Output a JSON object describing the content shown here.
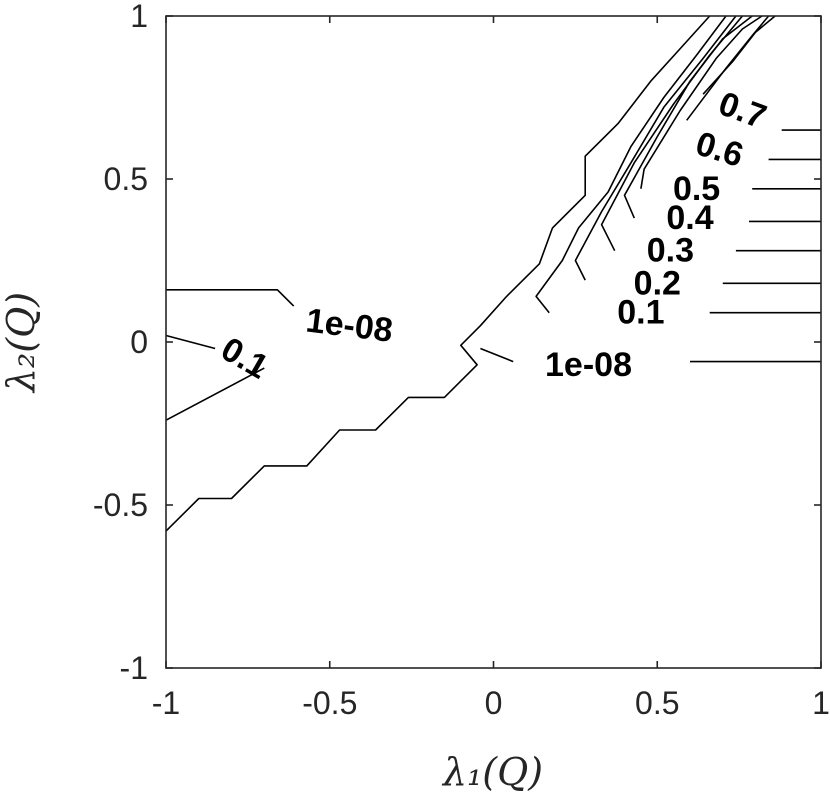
{
  "chart_data": {
    "type": "contour",
    "xlabel": "λ₁(Q)",
    "ylabel": "λ₂(Q)",
    "xlim": [
      -1,
      1
    ],
    "ylim": [
      -1,
      1
    ],
    "x_ticks": [
      "-1",
      "-0.5",
      "0",
      "0.5",
      "1"
    ],
    "y_ticks": [
      "1",
      "0.5",
      "0",
      "-0.5",
      "-1"
    ],
    "grid": false,
    "contours": [
      {
        "level": "1e-08",
        "points": [
          [
            -1,
            -0.58
          ],
          [
            -0.9,
            -0.48
          ],
          [
            -0.8,
            -0.48
          ],
          [
            -0.7,
            -0.38
          ],
          [
            -0.57,
            -0.38
          ],
          [
            -0.47,
            -0.27
          ],
          [
            -0.36,
            -0.27
          ],
          [
            -0.26,
            -0.17
          ],
          [
            -0.15,
            -0.17
          ],
          [
            -0.05,
            -0.07
          ],
          [
            -0.1,
            -0.01
          ],
          [
            -0.04,
            0.05
          ],
          [
            0.04,
            0.14
          ],
          [
            0.14,
            0.24
          ],
          [
            0.18,
            0.35
          ],
          [
            0.28,
            0.45
          ],
          [
            0.28,
            0.57
          ],
          [
            0.38,
            0.67
          ],
          [
            0.48,
            0.8
          ],
          [
            0.57,
            0.9
          ],
          [
            0.66,
            1.0
          ]
        ]
      },
      {
        "level": "1e-08",
        "points": [
          [
            -0.04,
            -0.02
          ],
          [
            0.06,
            -0.06
          ]
        ]
      },
      {
        "level": "1e-08",
        "points": [
          [
            -1,
            0.16
          ],
          [
            -0.66,
            0.16
          ],
          [
            -0.61,
            0.11
          ]
        ]
      },
      {
        "level": "1e-08",
        "points": [
          [
            0.6,
            -0.06
          ],
          [
            1.0,
            -0.06
          ]
        ]
      },
      {
        "level": "0.1",
        "points": [
          [
            -1,
            0.02
          ],
          [
            -0.85,
            -0.02
          ]
        ]
      },
      {
        "level": "0.1",
        "points": [
          [
            -0.7,
            -0.08
          ],
          [
            -1,
            -0.24
          ]
        ]
      },
      {
        "level": "0.1",
        "points": [
          [
            0.17,
            0.09
          ],
          [
            0.13,
            0.14
          ],
          [
            0.21,
            0.25
          ],
          [
            0.26,
            0.35
          ],
          [
            0.35,
            0.46
          ],
          [
            0.42,
            0.6
          ],
          [
            0.52,
            0.75
          ],
          [
            0.62,
            0.88
          ],
          [
            0.71,
            1.0
          ]
        ]
      },
      {
        "level": "0.1",
        "points": [
          [
            0.66,
            0.09
          ],
          [
            1.0,
            0.09
          ]
        ]
      },
      {
        "level": "0.2",
        "points": [
          [
            0.28,
            0.19
          ],
          [
            0.25,
            0.25
          ],
          [
            0.33,
            0.4
          ],
          [
            0.42,
            0.55
          ],
          [
            0.52,
            0.72
          ],
          [
            0.64,
            0.87
          ],
          [
            0.74,
            1.0
          ]
        ]
      },
      {
        "level": "0.2",
        "points": [
          [
            0.7,
            0.18
          ],
          [
            1.0,
            0.18
          ]
        ]
      },
      {
        "level": "0.3",
        "points": [
          [
            0.37,
            0.28
          ],
          [
            0.33,
            0.36
          ],
          [
            0.43,
            0.55
          ],
          [
            0.55,
            0.73
          ],
          [
            0.66,
            0.88
          ],
          [
            0.76,
            1.0
          ]
        ]
      },
      {
        "level": "0.3",
        "points": [
          [
            0.74,
            0.28
          ],
          [
            1.0,
            0.28
          ]
        ]
      },
      {
        "level": "0.4",
        "points": [
          [
            0.43,
            0.38
          ],
          [
            0.4,
            0.45
          ],
          [
            0.5,
            0.63
          ],
          [
            0.6,
            0.8
          ],
          [
            0.7,
            0.93
          ],
          [
            0.79,
            1.0
          ]
        ]
      },
      {
        "level": "0.4",
        "points": [
          [
            0.78,
            0.37
          ],
          [
            1.0,
            0.37
          ]
        ]
      },
      {
        "level": "0.5",
        "points": [
          [
            0.45,
            0.47
          ],
          [
            0.46,
            0.53
          ],
          [
            0.57,
            0.71
          ],
          [
            0.68,
            0.87
          ],
          [
            0.76,
            0.96
          ],
          [
            0.82,
            1.0
          ]
        ]
      },
      {
        "level": "0.5",
        "points": [
          [
            0.79,
            0.47
          ],
          [
            1.0,
            0.47
          ]
        ]
      },
      {
        "level": "0.6",
        "points": [
          [
            0.59,
            0.68
          ],
          [
            0.71,
            0.84
          ],
          [
            0.79,
            0.94
          ],
          [
            0.84,
            1.0
          ]
        ]
      },
      {
        "level": "0.6",
        "points": [
          [
            0.84,
            0.56
          ],
          [
            1.0,
            0.56
          ]
        ]
      },
      {
        "level": "0.7",
        "points": [
          [
            0.64,
            0.76
          ],
          [
            0.73,
            0.86
          ],
          [
            0.8,
            0.95
          ],
          [
            0.86,
            1.0
          ]
        ]
      },
      {
        "level": "0.7",
        "points": [
          [
            0.88,
            0.65
          ],
          [
            1.0,
            0.65
          ]
        ]
      }
    ],
    "contour_labels": [
      {
        "text": "1e-08",
        "x": -0.44,
        "y": 0.05,
        "angle": 7
      },
      {
        "text": "1e-08",
        "x": 0.29,
        "y": -0.07,
        "angle": 0
      },
      {
        "text": "0.1",
        "x": -0.76,
        "y": -0.05,
        "angle": 30
      },
      {
        "text": "0.1",
        "x": 0.45,
        "y": 0.09,
        "angle": 0
      },
      {
        "text": "0.2",
        "x": 0.5,
        "y": 0.18,
        "angle": 0
      },
      {
        "text": "0.3",
        "x": 0.54,
        "y": 0.28,
        "angle": 0
      },
      {
        "text": "0.4",
        "x": 0.6,
        "y": 0.38,
        "angle": 0
      },
      {
        "text": "0.5",
        "x": 0.62,
        "y": 0.47,
        "angle": 0
      },
      {
        "text": "0.6",
        "x": 0.69,
        "y": 0.59,
        "angle": 17
      },
      {
        "text": "0.7",
        "x": 0.76,
        "y": 0.71,
        "angle": 20
      }
    ]
  }
}
